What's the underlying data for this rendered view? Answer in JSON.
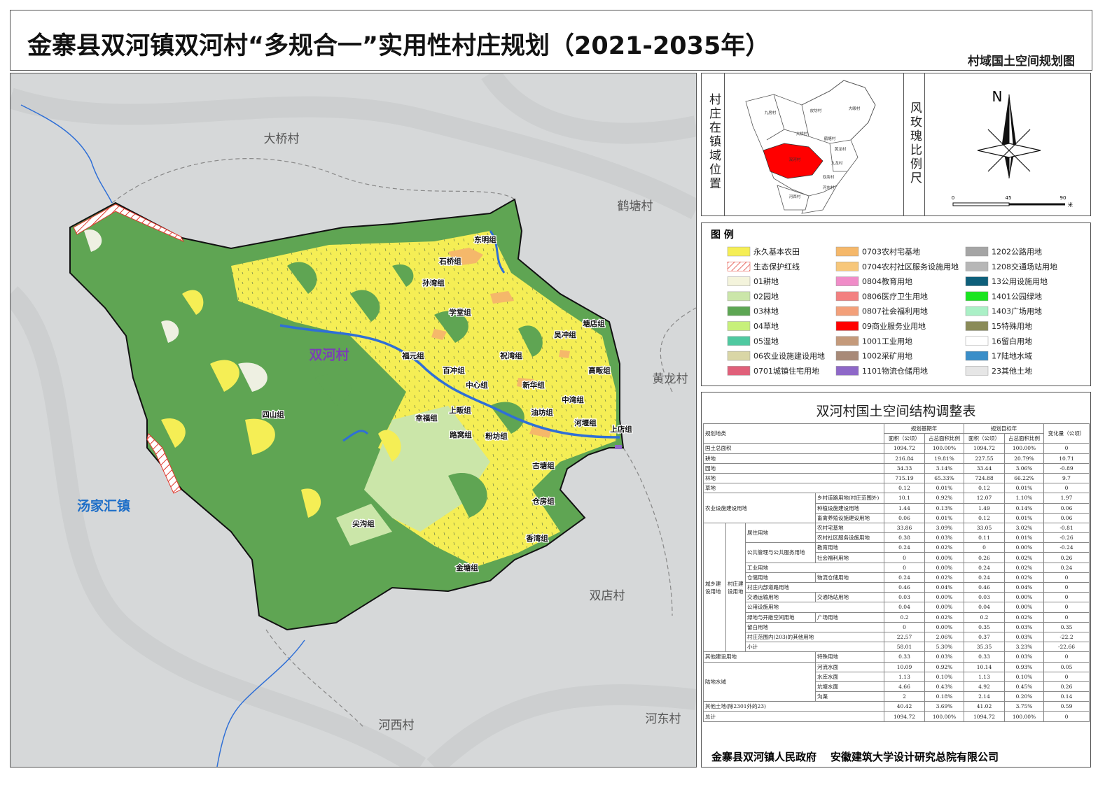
{
  "header": {
    "title": "金寨县双河镇双河村“多规合一”实用性村庄规划（2021-2035年）",
    "subtitle": "村域国土空间规划图"
  },
  "map": {
    "main_label": "双河村",
    "town_label": "汤家汇镇",
    "villages": [
      "大桥村",
      "鹤塘村",
      "黄龙村",
      "双店村",
      "河东村",
      "河西村"
    ],
    "groups": [
      "东明组",
      "石桥组",
      "孙湾组",
      "学堂组",
      "塘店组",
      "吴冲组",
      "福元组",
      "祝湾组",
      "高畈组",
      "百冲组",
      "中心组",
      "新华组",
      "中湾组",
      "四山组",
      "上畈组",
      "幸福组",
      "油坊组",
      "河堰组",
      "上店组",
      "路窝组",
      "粉坊组",
      "古塘组",
      "仓房组",
      "尖沟组",
      "香湾组",
      "金塘组"
    ]
  },
  "locator": {
    "title": "村庄在镇域位置",
    "labels": [
      "九房村",
      "皮坊村",
      "大畈村",
      "大桥村",
      "鹤塘村",
      "黄龙村",
      "双河村",
      "九龙村",
      "双店村",
      "河西村",
      "河东村"
    ]
  },
  "compass": {
    "title": "风玫瑰比例尺",
    "north": "N",
    "scale": [
      "0",
      "45",
      "90"
    ],
    "unit": "米"
  },
  "legend": {
    "title": "图 例",
    "items": [
      {
        "label": "永久基本农田",
        "color": "#f5ee55"
      },
      {
        "label": "生态保护红线",
        "color": "#e03a2f"
      },
      {
        "label": "01耕地",
        "color": "#f4f4dc"
      },
      {
        "label": "02园地",
        "color": "#cbe6a9"
      },
      {
        "label": "03林地",
        "color": "#5da653"
      },
      {
        "label": "04草地",
        "color": "#c7f07a"
      },
      {
        "label": "05湿地",
        "color": "#4fc9a0"
      },
      {
        "label": "06农业设施建设用地",
        "color": "#d9d6a6"
      },
      {
        "label": "0701城镇住宅用地",
        "color": "#e0607a"
      },
      {
        "label": "0703农村宅基地",
        "color": "#f5b86a"
      },
      {
        "label": "0704农村社区服务设施用地",
        "color": "#f7c77a"
      },
      {
        "label": "0804教育用地",
        "color": "#f08cc8"
      },
      {
        "label": "0806医疗卫生用地",
        "color": "#f38080"
      },
      {
        "label": "0807社会福利用地",
        "color": "#f3a07a"
      },
      {
        "label": "09商业服务业用地",
        "color": "#ff0000"
      },
      {
        "label": "1001工业用地",
        "color": "#c49a7b"
      },
      {
        "label": "1002采矿用地",
        "color": "#a88a78"
      },
      {
        "label": "1101物流仓储用地",
        "color": "#8e68c8"
      },
      {
        "label": "1202公路用地",
        "color": "#a5a5a5"
      },
      {
        "label": "1208交通场站用地",
        "color": "#b7b7b7"
      },
      {
        "label": "13公用设施用地",
        "color": "#0e5f7a"
      },
      {
        "label": "1401公园绿地",
        "color": "#19e51f"
      },
      {
        "label": "1403广场用地",
        "color": "#aaf0c6"
      },
      {
        "label": "15特殊用地",
        "color": "#8a8b58"
      },
      {
        "label": "16留白用地",
        "color": "#ffffff"
      },
      {
        "label": "17陆地水域",
        "color": "#3a8ec8"
      },
      {
        "label": "23其他土地",
        "color": "#e6e6e6"
      }
    ]
  },
  "table": {
    "title": "双河村国土空间结构调整表",
    "header": {
      "category": "规划地类",
      "base": "规划基期年",
      "target": "规划目标年",
      "area": "面积（公顷）",
      "ratio": "占总面积比例",
      "change": "变化量（公顷）"
    },
    "rows": [
      {
        "label": "国土总面积",
        "values": [
          "1094.72",
          "100.00%",
          "1094.72",
          "100.00%",
          "0"
        ]
      },
      {
        "label": "耕地",
        "values": [
          "216.84",
          "19.81%",
          "227.55",
          "20.79%",
          "10.71"
        ]
      },
      {
        "label": "园地",
        "values": [
          "34.33",
          "3.14%",
          "33.44",
          "3.06%",
          "-0.89"
        ]
      },
      {
        "label": "林地",
        "values": [
          "715.19",
          "65.33%",
          "724.88",
          "66.22%",
          "9.7"
        ]
      },
      {
        "label": "草地",
        "values": [
          "0.12",
          "0.01%",
          "0.12",
          "0.01%",
          "0"
        ]
      },
      {
        "label": "农业设施建设用地",
        "children": [
          {
            "label": "乡村道路用地(村庄范围外)",
            "values": [
              "10.1",
              "0.92%",
              "12.07",
              "1.10%",
              "1.97"
            ]
          },
          {
            "label": "种植设施建设用地",
            "values": [
              "1.44",
              "0.13%",
              "1.49",
              "0.14%",
              "0.06"
            ]
          },
          {
            "label": "畜禽养殖设施建设用地",
            "values": [
              "0.06",
              "0.01%",
              "0.12",
              "0.01%",
              "0.06"
            ]
          }
        ]
      },
      {
        "label": "城乡建设用地",
        "children": [
          {
            "label": "村庄建设用地",
            "children": [
              {
                "label": "居住用地",
                "children": [
                  {
                    "label": "农村宅基地",
                    "values": [
                      "33.86",
                      "3.09%",
                      "33.05",
                      "3.02%",
                      "-0.81"
                    ]
                  },
                  {
                    "label": "农村社区服务设施用地",
                    "values": [
                      "0.38",
                      "0.03%",
                      "0.11",
                      "0.01%",
                      "-0.26"
                    ]
                  }
                ]
              },
              {
                "label": "公共管理与公共服务用地",
                "children": [
                  {
                    "label": "教育用地",
                    "values": [
                      "0.24",
                      "0.02%",
                      "0",
                      "0.00%",
                      "-0.24"
                    ]
                  },
                  {
                    "label": "社会福利用地",
                    "values": [
                      "0",
                      "0.00%",
                      "0.26",
                      "0.02%",
                      "0.26"
                    ]
                  }
                ]
              },
              {
                "label": "工业用地",
                "values": [
                  "0",
                  "0.00%",
                  "0.24",
                  "0.02%",
                  "0.24"
                ]
              },
              {
                "label": "仓储用地",
                "children": [
                  {
                    "label": "物流仓储用地",
                    "values": [
                      "0.24",
                      "0.02%",
                      "0.24",
                      "0.02%",
                      "0"
                    ]
                  }
                ]
              },
              {
                "label": "村庄内部道路用地",
                "values": [
                  "0.46",
                  "0.04%",
                  "0.46",
                  "0.04%",
                  "0"
                ]
              },
              {
                "label": "交通运输用地",
                "children": [
                  {
                    "label": "交通场站用地",
                    "values": [
                      "0.03",
                      "0.00%",
                      "0.03",
                      "0.00%",
                      "0"
                    ]
                  }
                ]
              },
              {
                "label": "公用设施用地",
                "values": [
                  "0.04",
                  "0.00%",
                  "0.04",
                  "0.00%",
                  "0"
                ]
              },
              {
                "label": "绿地与开敞空间用地",
                "children": [
                  {
                    "label": "广场用地",
                    "values": [
                      "0.2",
                      "0.02%",
                      "0.2",
                      "0.02%",
                      "0"
                    ]
                  }
                ]
              },
              {
                "label": "留白用地",
                "values": [
                  "0",
                  "0.00%",
                  "0.35",
                  "0.03%",
                  "0.35"
                ]
              },
              {
                "label": "村庄范围内(203)的其他用地",
                "values": [
                  "22.57",
                  "2.06%",
                  "0.37",
                  "0.03%",
                  "-22.2"
                ]
              },
              {
                "label": "小计",
                "values": [
                  "58.01",
                  "5.30%",
                  "35.35",
                  "3.23%",
                  "-22.66"
                ]
              }
            ]
          }
        ]
      },
      {
        "label": "其他建设用地",
        "children": [
          {
            "label": "特殊用地",
            "values": [
              "0.33",
              "0.03%",
              "0.33",
              "0.03%",
              "0"
            ]
          }
        ]
      },
      {
        "label": "陆地水域",
        "children": [
          {
            "label": "河流水面",
            "values": [
              "10.09",
              "0.92%",
              "10.14",
              "0.93%",
              "0.05"
            ]
          },
          {
            "label": "水库水面",
            "values": [
              "1.13",
              "0.10%",
              "1.13",
              "0.10%",
              "0"
            ]
          },
          {
            "label": "坑塘水面",
            "values": [
              "4.66",
              "0.43%",
              "4.92",
              "0.45%",
              "0.26"
            ]
          },
          {
            "label": "沟渠",
            "values": [
              "2",
              "0.18%",
              "2.14",
              "0.20%",
              "0.14"
            ]
          }
        ]
      },
      {
        "label": "其他土地(除2301外的23)",
        "values": [
          "40.42",
          "3.69%",
          "41.02",
          "3.75%",
          "0.59"
        ]
      },
      {
        "label": "总计",
        "values": [
          "1094.72",
          "100.00%",
          "1094.72",
          "100.00%",
          "0"
        ]
      }
    ]
  },
  "footer": {
    "government": "金寨县双河镇人民政府",
    "institute": "安徽建筑大学设计研究总院有限公司"
  }
}
